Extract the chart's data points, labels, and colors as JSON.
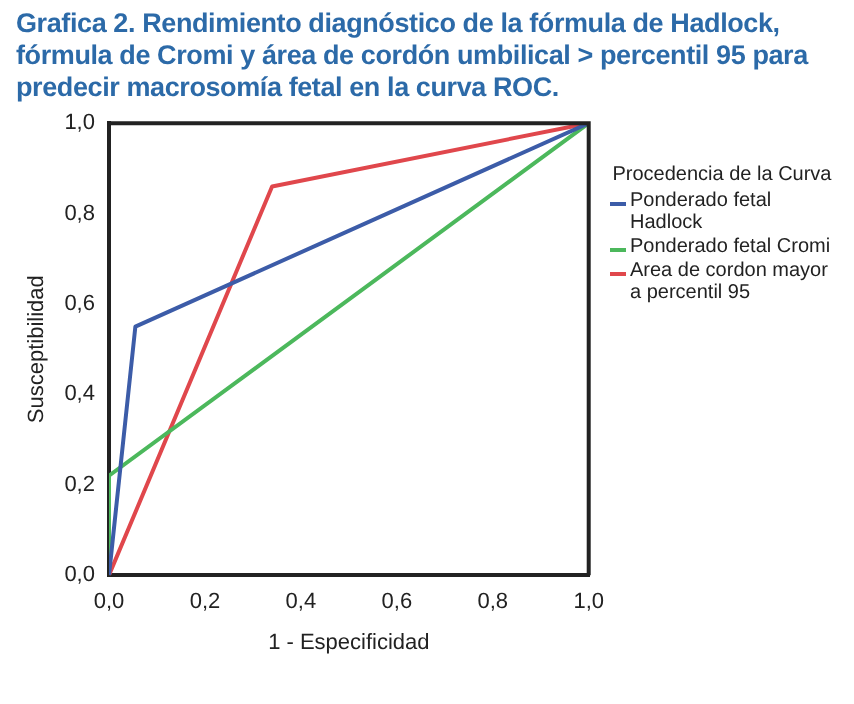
{
  "chart_data": {
    "type": "line",
    "title": "Grafica 2.  Rendimiento diagnóstico de la fórmula de Hadlock, fórmula de Cromi  y área de cordón umbilical > percentil 95 para predecir macrosomía fetal en la curva ROC.",
    "xlabel": "1 - Especificidad",
    "ylabel": "Susceptibilidad",
    "legend_title": "Procedencia de la Curva",
    "legend": "right",
    "grid": false,
    "marker": "none",
    "line_style": "solid",
    "xlim": [
      0,
      1
    ],
    "ylim": [
      0,
      1
    ],
    "xticks": [
      {
        "value": 0,
        "label": "0,0"
      },
      {
        "value": 0.2,
        "label": "0,2"
      },
      {
        "value": 0.4,
        "label": "0,4"
      },
      {
        "value": 0.6,
        "label": "0,6"
      },
      {
        "value": 0.8,
        "label": "0,8"
      },
      {
        "value": 1,
        "label": "1,0"
      }
    ],
    "yticks": [
      {
        "value": 0,
        "label": "0,0"
      },
      {
        "value": 0.2,
        "label": "0,2"
      },
      {
        "value": 0.4,
        "label": "0,4"
      },
      {
        "value": 0.6,
        "label": "0,6"
      },
      {
        "value": 0.8,
        "label": "0,8"
      },
      {
        "value": 1,
        "label": "1,0"
      }
    ],
    "series": [
      {
        "name": "Ponderado fetal Hadlock",
        "color": "#3c5ca8",
        "x": [
          0,
          0.055,
          1
        ],
        "values": [
          0,
          0.55,
          1
        ]
      },
      {
        "name": "Ponderado fetal Cromi",
        "color": "#4cb85c",
        "x": [
          0,
          0,
          1
        ],
        "values": [
          0,
          0.22,
          1
        ]
      },
      {
        "name": "Area de cordon mayor a percentil 95",
        "color": "#e0474c",
        "x": [
          0,
          0.34,
          1
        ],
        "values": [
          0,
          0.86,
          1
        ]
      }
    ]
  }
}
